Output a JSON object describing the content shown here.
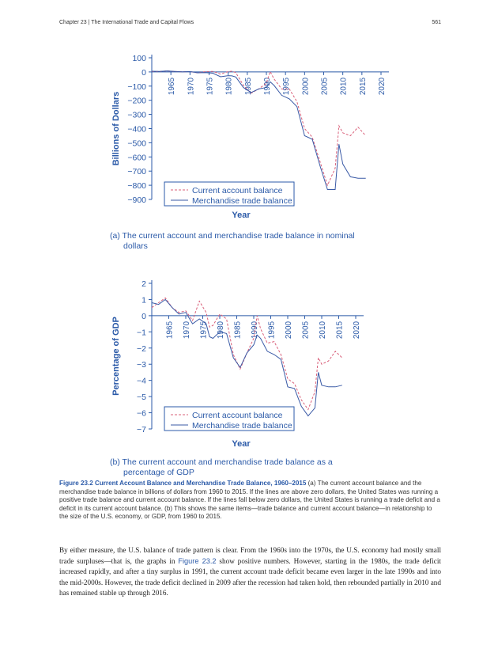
{
  "header": {
    "chapter": "Chapter 23 | The International Trade and Capital Flows",
    "page_number": "561"
  },
  "figure": {
    "caption_title": "Figure 23.2 Current Account Balance and Merchandise Trade Balance, 1960–2015",
    "caption_text": "(a) The current account balance and the merchandise trade balance in billions of dollars from 1960 to 2015. If the lines are above zero dollars, the United States was running a positive trade balance and current account balance. If the lines fall below zero dollars, the United States is running a trade deficit and a deficit in its current account balance. (b) This shows the same items—trade balance and current account balance—in relationship to the size of the U.S. economy, or GDP, from 1960 to 2015."
  },
  "panel_a": {
    "caption_line1": "(a) The current account and merchandise trade balance in nominal",
    "caption_line2": "dollars"
  },
  "panel_b": {
    "caption_line1": "(b) The current account and merchandise trade balance as a",
    "caption_line2": "percentage of GDP"
  },
  "body": {
    "part1": "By either measure, the U.S. balance of trade pattern is clear. From the 1960s into the 1970s, the U.S. economy had mostly small trade surpluses—that is, the graphs in ",
    "ref": "Figure 23.2",
    "part2": " show positive numbers. However, starting in the 1980s, the trade deficit increased rapidly, and after a tiny surplus in 1991, the current account trade deficit became even larger in the late 1990s and into the mid-2000s. However, the trade deficit declined in 2009 after the recession had taken hold, then rebounded partially in 2010 and has remained stable up through 2016."
  },
  "colors": {
    "axis_blue": "#2b5aa8",
    "current_account": "#d9607a",
    "merchandise_trade": "#3a5aa6"
  },
  "chart_data": [
    {
      "type": "line",
      "ylabel": "Billions of Dollars",
      "xlabel": "Year",
      "xlim": [
        1960,
        2020
      ],
      "ylim": [
        -900,
        100
      ],
      "x_ticks": [
        "1965",
        "1970",
        "1975",
        "1980",
        "1985",
        "1990",
        "1995",
        "2000",
        "2005",
        "2010",
        "2015",
        "2020"
      ],
      "y_ticks": [
        "100",
        "0",
        "−100",
        "−200",
        "−300",
        "−400",
        "−500",
        "−600",
        "−700",
        "−800",
        "−900"
      ],
      "legend_position": "bottom-center",
      "x": [
        1960,
        1962,
        1964,
        1966,
        1968,
        1970,
        1972,
        1974,
        1976,
        1978,
        1980,
        1981,
        1982,
        1984,
        1986,
        1988,
        1990,
        1991,
        1992,
        1994,
        1996,
        1998,
        2000,
        2002,
        2004,
        2006,
        2008,
        2009,
        2010,
        2012,
        2014,
        2016
      ],
      "series": [
        {
          "name": "Current account balance",
          "style": "dashed",
          "values": [
            3,
            3,
            7,
            3,
            1,
            2,
            -6,
            2,
            4,
            -15,
            2,
            5,
            -5,
            -95,
            -150,
            -120,
            -80,
            3,
            -50,
            -120,
            -120,
            -210,
            -400,
            -460,
            -630,
            -800,
            -680,
            -380,
            -430,
            -450,
            -390,
            -450
          ]
        },
        {
          "name": "Merchandise trade balance",
          "style": "solid",
          "values": [
            5,
            4,
            7,
            4,
            1,
            3,
            -6,
            -5,
            -9,
            -34,
            -26,
            -28,
            -36,
            -110,
            -145,
            -120,
            -110,
            -70,
            -95,
            -165,
            -190,
            -245,
            -450,
            -475,
            -660,
            -830,
            -830,
            -510,
            -650,
            -740,
            -750,
            -750
          ]
        }
      ]
    },
    {
      "type": "line",
      "ylabel": "Percentage of GDP",
      "xlabel": "Year",
      "xlim": [
        1960,
        2020
      ],
      "ylim": [
        -7,
        2
      ],
      "x_ticks": [
        "1965",
        "1970",
        "1975",
        "1980",
        "1985",
        "1990",
        "1995",
        "2000",
        "2005",
        "2010",
        "2015",
        "2020"
      ],
      "y_ticks": [
        "2",
        "1",
        "0",
        "−1",
        "−2",
        "−3",
        "−4",
        "−5",
        "−6",
        "−7"
      ],
      "legend_position": "bottom-center",
      "x": [
        1960,
        1962,
        1964,
        1966,
        1968,
        1970,
        1972,
        1974,
        1976,
        1977,
        1978,
        1980,
        1982,
        1984,
        1986,
        1988,
        1990,
        1991,
        1992,
        1994,
        1996,
        1998,
        2000,
        2002,
        2004,
        2006,
        2008,
        2009,
        2010,
        2012,
        2014,
        2016
      ],
      "series": [
        {
          "name": "Current  account balance",
          "style": "dashed",
          "values": [
            0.5,
            0.8,
            1.1,
            0.5,
            0.2,
            0.3,
            -0.3,
            0.9,
            0.2,
            -0.7,
            -0.6,
            0.1,
            -0.2,
            -2.4,
            -3.3,
            -2.3,
            -1.4,
            0.0,
            -0.8,
            -1.7,
            -1.6,
            -2.4,
            -3.9,
            -4.2,
            -5.2,
            -5.8,
            -4.7,
            -2.6,
            -3.0,
            -2.8,
            -2.2,
            -2.6
          ]
        },
        {
          "name": "Merchandise trade balance",
          "style": "solid",
          "values": [
            0.8,
            0.7,
            1.0,
            0.5,
            0.1,
            0.2,
            -0.5,
            -0.2,
            -0.5,
            -1.3,
            -1.4,
            -1.0,
            -1.1,
            -2.6,
            -3.2,
            -2.3,
            -1.8,
            -1.2,
            -1.4,
            -2.2,
            -2.4,
            -2.7,
            -4.4,
            -4.5,
            -5.6,
            -6.2,
            -5.7,
            -3.5,
            -4.3,
            -4.4,
            -4.4,
            -4.3
          ]
        }
      ]
    }
  ]
}
